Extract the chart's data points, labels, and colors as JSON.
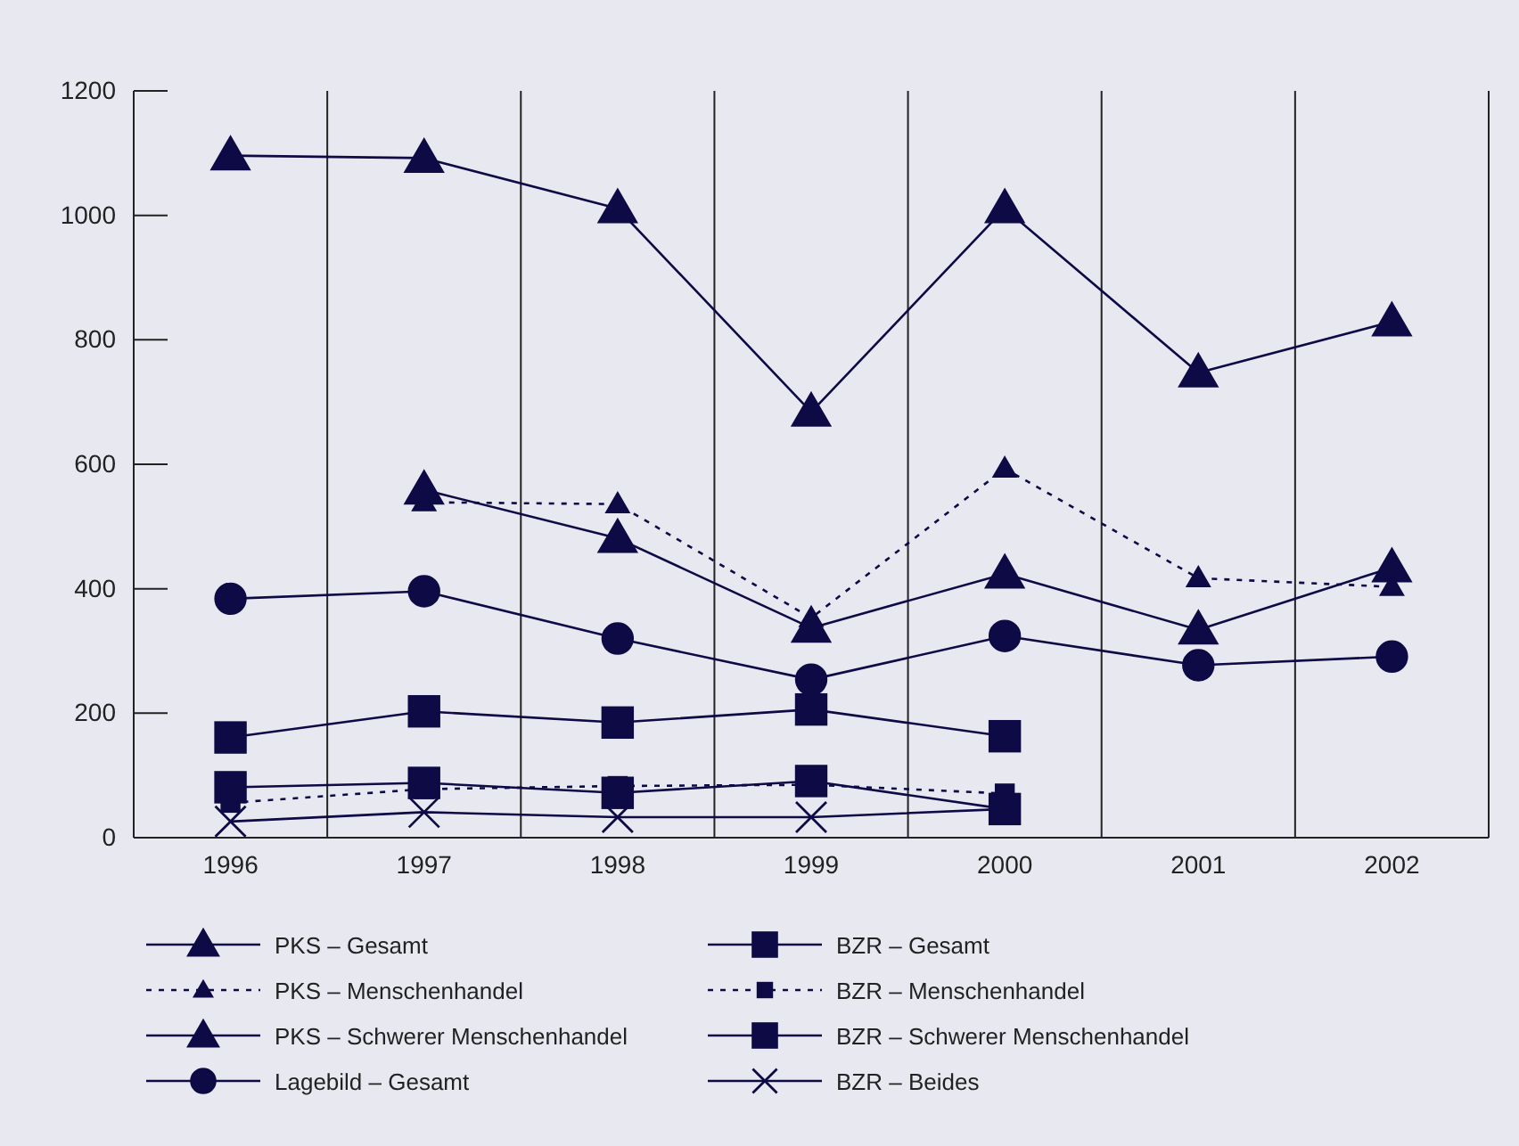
{
  "chart_data": {
    "type": "line",
    "categories": [
      "1996",
      "1997",
      "1998",
      "1999",
      "2000",
      "2001",
      "2002"
    ],
    "ylim": [
      0,
      1200
    ],
    "yticks": [
      0,
      200,
      400,
      600,
      800,
      1000,
      1200
    ],
    "grid": "x",
    "legend": "bottom",
    "series": [
      {
        "name": "PKS – Gesamt",
        "color": "#0d0a45",
        "marker": "triangle",
        "line_style": "solid",
        "values": [
          1096,
          1092,
          1011,
          684,
          1011,
          747,
          829
        ]
      },
      {
        "name": "PKS – Menschenhandel",
        "color": "#0d0a45",
        "marker": "triangle",
        "line_style": "dashed",
        "values": [
          null,
          539,
          536,
          353,
          593,
          417,
          403
        ]
      },
      {
        "name": "PKS – Schwerer Menschenhandel",
        "color": "#0d0a45",
        "marker": "triangle",
        "line_style": "solid",
        "values": [
          null,
          559,
          481,
          337,
          424,
          334,
          434
        ]
      },
      {
        "name": "Lagebild – Gesamt",
        "color": "#0d0a45",
        "marker": "circle",
        "line_style": "solid",
        "values": [
          384,
          396,
          320,
          254,
          324,
          277,
          291
        ]
      },
      {
        "name": "BZR – Gesamt",
        "color": "#0d0a45",
        "marker": "square",
        "line_style": "solid",
        "values": [
          161,
          203,
          185,
          206,
          163,
          null,
          null
        ]
      },
      {
        "name": "BZR – Menschenhandel",
        "color": "#0d0a45",
        "marker": "square",
        "line_style": "dashed",
        "values": [
          56,
          78,
          83,
          85,
          71,
          null,
          null
        ]
      },
      {
        "name": "BZR – Schwerer Menschenhandel",
        "color": "#0d0a45",
        "marker": "square",
        "line_style": "solid",
        "values": [
          81,
          88,
          72,
          91,
          46,
          null,
          null
        ]
      },
      {
        "name": "BZR – Beides",
        "color": "#0d0a45",
        "marker": "cross",
        "line_style": "solid",
        "values": [
          26,
          41,
          33,
          33,
          46,
          null,
          null
        ]
      }
    ]
  }
}
